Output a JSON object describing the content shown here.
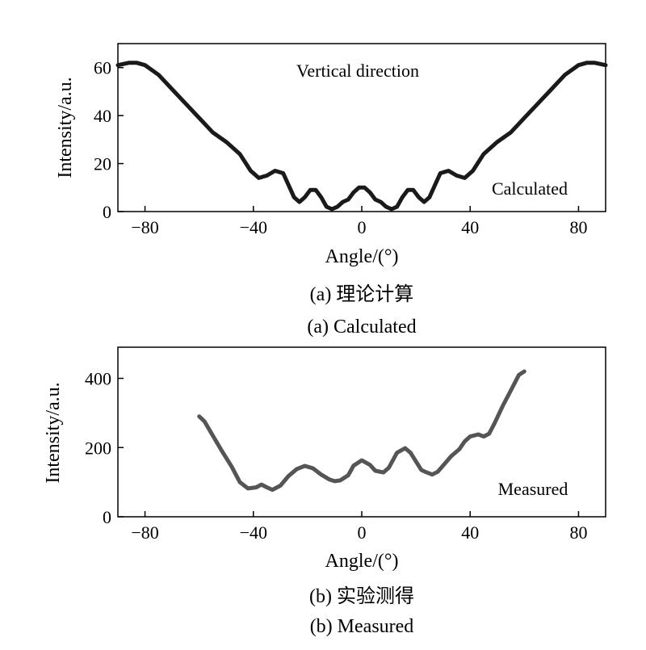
{
  "chart_data": [
    {
      "type": "line",
      "annotation_top": "Vertical direction",
      "annotation_right": "Calculated",
      "xlabel": "Angle/(°)",
      "ylabel": "Intensity/a.u.",
      "xlim": [
        -90,
        90
      ],
      "ylim": [
        0,
        70
      ],
      "xticks": [
        -80,
        -40,
        0,
        40,
        80
      ],
      "xtick_labels": [
        "−80",
        "−40",
        "0",
        "40",
        "80"
      ],
      "yticks": [
        0,
        20,
        40,
        60
      ],
      "ytick_labels": [
        "0",
        "20",
        "40",
        "60"
      ],
      "caption_cn": "(a) 理论计算",
      "caption_en": "(a) Calculated",
      "series": [
        {
          "color": "#1a1a1a",
          "x": [
            -90,
            -86,
            -83,
            -80,
            -75,
            -70,
            -65,
            -60,
            -55,
            -50,
            -45,
            -41,
            -38,
            -35,
            -32,
            -29,
            -27,
            -25,
            -23,
            -21,
            -19,
            -17,
            -15,
            -13,
            -11,
            -9,
            -7,
            -5,
            -3,
            -1,
            0,
            1,
            3,
            5,
            7,
            9,
            11,
            13,
            15,
            17,
            19,
            21,
            23,
            25,
            27,
            29,
            32,
            35,
            38,
            41,
            45,
            50,
            55,
            60,
            65,
            70,
            75,
            80,
            83,
            86,
            90
          ],
          "y": [
            61,
            62,
            62,
            61,
            57,
            51,
            45,
            39,
            33,
            29,
            24,
            17,
            14,
            15,
            17,
            16,
            11,
            6,
            4,
            6,
            9,
            9,
            6,
            2,
            1,
            2,
            4,
            5,
            8,
            10,
            10,
            10,
            8,
            5,
            4,
            2,
            1,
            2,
            6,
            9,
            9,
            6,
            4,
            6,
            11,
            16,
            17,
            15,
            14,
            17,
            24,
            29,
            33,
            39,
            45,
            51,
            57,
            61,
            62,
            62,
            61
          ]
        }
      ]
    },
    {
      "type": "line",
      "annotation_right": "Measured",
      "xlabel": "Angle/(°)",
      "ylabel": "Intensity/a.u.",
      "xlim": [
        -90,
        90
      ],
      "ylim": [
        0,
        490
      ],
      "xticks": [
        -80,
        -40,
        0,
        40,
        80
      ],
      "xtick_labels": [
        "−80",
        "−40",
        "0",
        "40",
        "80"
      ],
      "yticks": [
        0,
        200,
        400
      ],
      "ytick_labels": [
        "0",
        "200",
        "400"
      ],
      "caption_cn": "(b) 实验测得",
      "caption_en": "(b) Measured",
      "series": [
        {
          "color": "#555555",
          "x": [
            -60,
            -58,
            -55,
            -52,
            -48,
            -45,
            -42,
            -39,
            -37,
            -35,
            -33,
            -30,
            -27,
            -24,
            -21,
            -18,
            -15,
            -12,
            -10,
            -8,
            -5,
            -3,
            0,
            3,
            5,
            8,
            10,
            13,
            16,
            18,
            20,
            22,
            24,
            26,
            28,
            30,
            33,
            36,
            38,
            40,
            43,
            45,
            47,
            49,
            52,
            55,
            58,
            60
          ],
          "y": [
            290,
            275,
            235,
            195,
            145,
            100,
            82,
            85,
            93,
            85,
            78,
            90,
            118,
            138,
            147,
            140,
            122,
            108,
            103,
            105,
            120,
            148,
            163,
            150,
            133,
            128,
            142,
            185,
            198,
            185,
            160,
            135,
            128,
            122,
            130,
            148,
            175,
            195,
            218,
            232,
            238,
            232,
            240,
            270,
            320,
            365,
            410,
            420
          ]
        }
      ]
    }
  ]
}
